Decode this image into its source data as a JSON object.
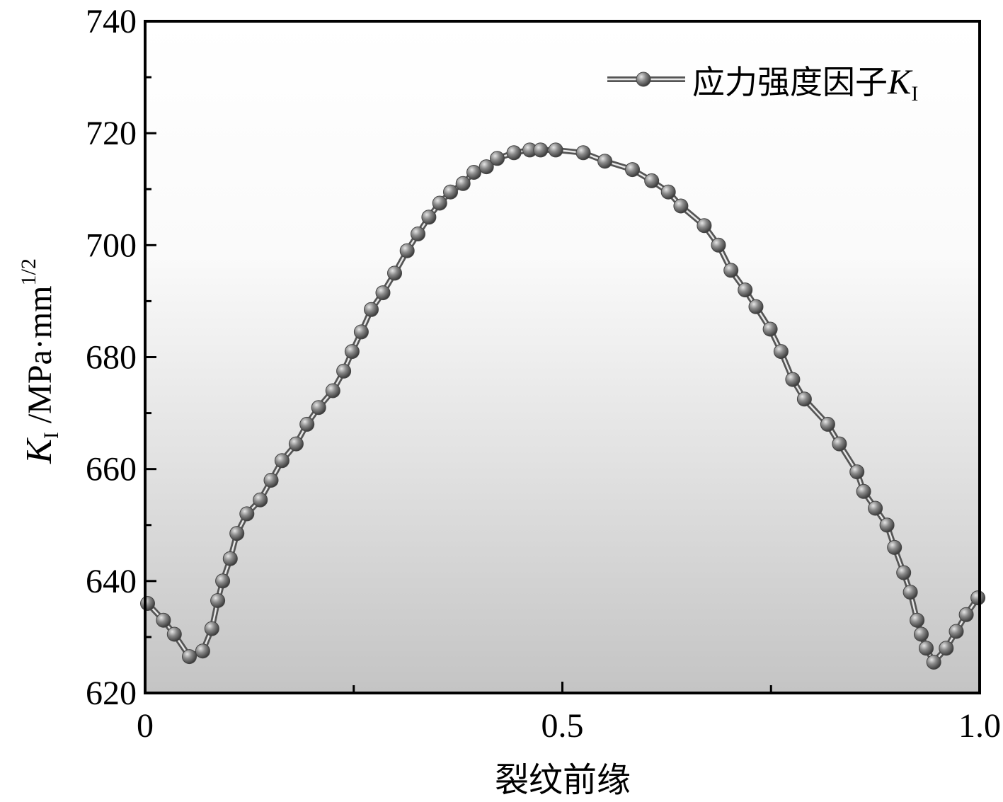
{
  "chart_data": {
    "type": "line",
    "title": "",
    "xlabel": "裂纹前缘",
    "ylabel": {
      "symbol": "K",
      "subscript": "I",
      "unit": " /MPa·mm",
      "superscript": "1/2"
    },
    "xlim": [
      0,
      1.0
    ],
    "ylim": [
      620,
      740
    ],
    "x_ticks": [
      0,
      0.5,
      1.0
    ],
    "x_tick_labels": [
      "0",
      "0.5",
      "1.0"
    ],
    "y_ticks": [
      620,
      640,
      660,
      680,
      700,
      720,
      740
    ],
    "y_tick_labels": [
      "620",
      "640",
      "660",
      "680",
      "700",
      "720",
      "740"
    ],
    "grid": false,
    "legend_position": "top-right",
    "background": "vertical gradient white to grey",
    "series": [
      {
        "name": "应力强度因子",
        "name_symbol": "K",
        "name_subscript": "I",
        "color": "#666666",
        "marker": "sphere",
        "x": [
          0.003,
          0.022,
          0.035,
          0.053,
          0.069,
          0.08,
          0.087,
          0.093,
          0.102,
          0.11,
          0.122,
          0.138,
          0.151,
          0.164,
          0.181,
          0.194,
          0.208,
          0.225,
          0.238,
          0.248,
          0.259,
          0.271,
          0.285,
          0.299,
          0.314,
          0.327,
          0.34,
          0.353,
          0.366,
          0.381,
          0.394,
          0.409,
          0.422,
          0.442,
          0.461,
          0.474,
          0.492,
          0.525,
          0.551,
          0.584,
          0.607,
          0.627,
          0.642,
          0.67,
          0.687,
          0.702,
          0.719,
          0.732,
          0.749,
          0.762,
          0.776,
          0.79,
          0.818,
          0.832,
          0.853,
          0.861,
          0.875,
          0.889,
          0.898,
          0.909,
          0.917,
          0.925,
          0.93,
          0.936,
          0.945,
          0.96,
          0.972,
          0.984,
          0.998
        ],
        "y": [
          636.0,
          633.0,
          630.5,
          626.5,
          627.5,
          631.5,
          636.5,
          640.0,
          644.0,
          648.5,
          652.0,
          654.5,
          658.0,
          661.5,
          664.5,
          668.0,
          671.0,
          674.0,
          677.5,
          681.0,
          684.5,
          688.5,
          691.5,
          695.0,
          699.0,
          702.0,
          705.0,
          707.5,
          709.5,
          711.0,
          713.0,
          714.0,
          715.5,
          716.5,
          717.0,
          717.0,
          717.0,
          716.5,
          715.0,
          713.5,
          711.5,
          709.5,
          707.0,
          703.5,
          700.0,
          695.5,
          692.0,
          689.0,
          685.0,
          681.0,
          676.0,
          672.5,
          668.0,
          664.5,
          659.5,
          656.0,
          653.0,
          650.0,
          646.0,
          641.5,
          638.0,
          633.0,
          630.5,
          628.0,
          625.5,
          628.0,
          631.0,
          634.0,
          637.0
        ]
      }
    ]
  }
}
